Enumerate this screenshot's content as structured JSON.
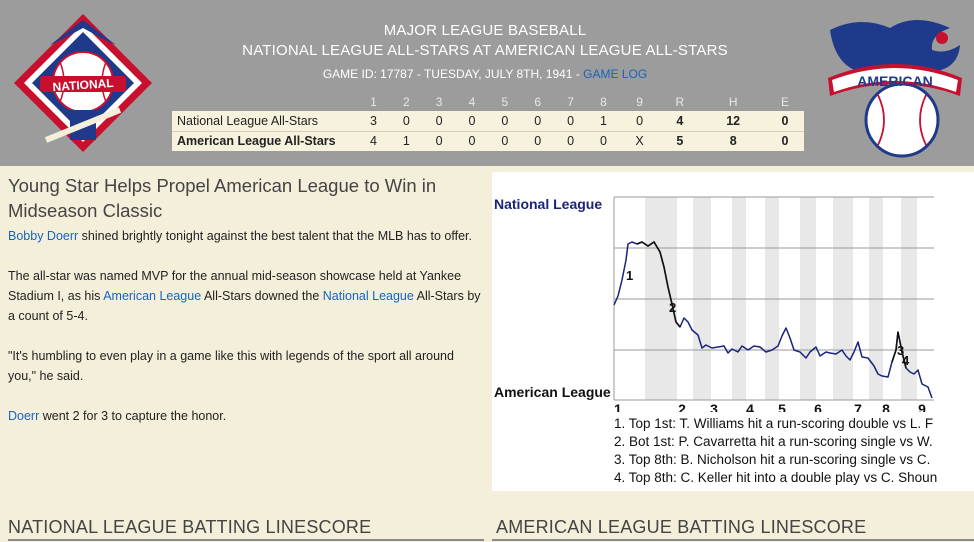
{
  "header": {
    "line1": "MAJOR LEAGUE BASEBALL",
    "line2": "NATIONAL LEAGUE ALL-STARS AT AMERICAN LEAGUE ALL-STARS",
    "game_info": "GAME ID: 17787 - TUESDAY, JULY 8TH, 1941 - ",
    "game_log_label": "GAME LOG",
    "nl_logo_text": "NATIONAL",
    "al_logo_text": "AMERICAN"
  },
  "linescore": {
    "columns": [
      "1",
      "2",
      "3",
      "4",
      "5",
      "6",
      "7",
      "8",
      "9",
      "R",
      "H",
      "E"
    ],
    "rows": [
      {
        "team": "National League All-Stars",
        "cells": [
          "3",
          "0",
          "0",
          "0",
          "0",
          "0",
          "0",
          "1",
          "0",
          "4",
          "12",
          "0"
        ]
      },
      {
        "team": "American League All-Stars",
        "cells": [
          "4",
          "1",
          "0",
          "0",
          "0",
          "0",
          "0",
          "0",
          "X",
          "5",
          "8",
          "0"
        ]
      }
    ]
  },
  "article": {
    "title": "Young Star Helps Propel American League to Win in Midseason Classic",
    "p1_link": "Bobby Doerr",
    "p1_text": " shined brightly tonight against the best talent that the MLB has to offer.",
    "p2_a": "The all-star was named MVP for the annual mid-season showcase held at Yankee Stadium I, as his ",
    "p2_link1": "American League",
    "p2_b": " All-Stars downed the ",
    "p2_link2": "National League",
    "p2_c": " All-Stars by a count of 5-4.",
    "p3": "\"It's humbling to even play in a game like this with legends of the sport all around you,\" he said.",
    "p4_link": "Doerr",
    "p4_text": " went 2 for 3 to capture the honor."
  },
  "win_probability": {
    "top_label": "National League",
    "bottom_label": "American League",
    "colors": {
      "line": "#1a237e",
      "key_segment": "#111111",
      "band": "#e8e8e8",
      "top_label": "#1a237e"
    },
    "innings": [
      "1",
      "2",
      "3",
      "4",
      "5",
      "6",
      "7",
      "8",
      "9"
    ],
    "markers": [
      "1",
      "2",
      "3",
      "4"
    ],
    "notes": [
      "1. Top 1st: T. Williams hit a run-scoring double vs L. F",
      "2. Bot 1st: P. Cavarretta hit a run-scoring single vs W.",
      "3. Top 8th: B. Nicholson hit a run-scoring single vs C.",
      "4. Top 8th: C. Keller hit into a double play vs C. Shoun"
    ]
  },
  "sections": {
    "nl_batting": "NATIONAL LEAGUE BATTING LINESCORE",
    "al_batting": "AMERICAN LEAGUE BATTING LINESCORE"
  }
}
